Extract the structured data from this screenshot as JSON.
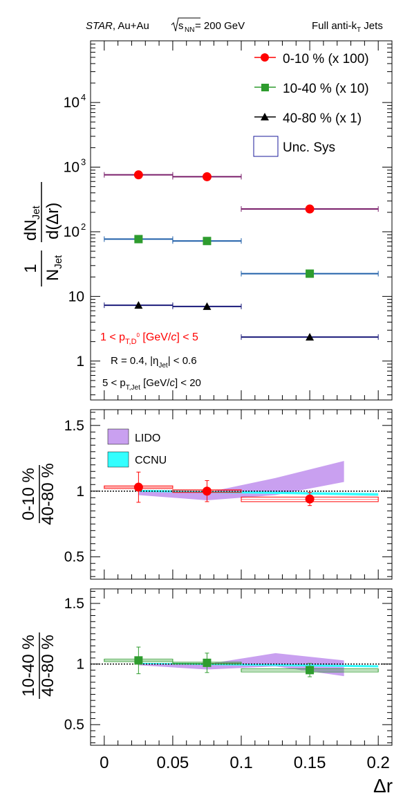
{
  "header": {
    "experiment": "STAR",
    "system": ", Au+Au",
    "energy_sym": "s",
    "energy_sub": "NN",
    "energy_val": " = 200 GeV",
    "jets_pre": "Full anti-k",
    "jets_sub": "T",
    "jets_post": " Jets"
  },
  "colors": {
    "central": "#ff0000",
    "mid": "#2e9c2e",
    "peripheral": "#000000",
    "central_line": "#7a1f6b",
    "mid_line": "#1f5fa8",
    "peripheral_line": "#1a1a7a",
    "lido": "#c9a0f0",
    "ccnu": "#33ffff"
  },
  "legend_top": {
    "central": "0-10 % (x 100)",
    "mid": "10-40 % (x 10)",
    "peripheral": "40-80 % (x 1)",
    "sys": "Unc. Sys"
  },
  "annotations": {
    "d0_a": "1 < p",
    "d0_sub": "T,D",
    "d0_sup": "0",
    "d0_b": " [GeV/",
    "d0_c": "c",
    "d0_d": "] < 5",
    "radius_a": "R = 0.4, |η",
    "radius_sub": "Jet",
    "radius_b": "| < 0.6",
    "ptjet_a": "5 < p",
    "ptjet_sub": "T,Jet",
    "ptjet_b": " [GeV/",
    "ptjet_c": "c",
    "ptjet_d": "] < 20"
  },
  "y_top": {
    "frac_num": "1",
    "frac_den": "N",
    "frac_den_sub": "Jet",
    "d_num_a": "dN",
    "d_num_sub": "Jet",
    "d_den": "d(Δr)"
  },
  "y_mid": {
    "num": "0-10 %",
    "den": "40-80 %"
  },
  "y_bot": {
    "num": "10-40 %",
    "den": "40-80 %"
  },
  "x_label": "Δr",
  "legend_models": {
    "lido": "LIDO",
    "ccnu": "CCNU"
  },
  "chart_data": [
    {
      "type": "scatter",
      "panel": "top",
      "ylog": true,
      "ylim": [
        0.25,
        90000
      ],
      "xlim": [
        -0.01,
        0.21
      ],
      "yticks": [
        {
          "v": 1,
          "label": "1"
        },
        {
          "v": 10,
          "label": "10"
        },
        {
          "v": 100,
          "label": "10",
          "sup": "2"
        },
        {
          "v": 1000,
          "label": "10",
          "sup": "3"
        },
        {
          "v": 10000,
          "label": "10",
          "sup": "4"
        }
      ],
      "bins": [
        [
          0,
          0.05
        ],
        [
          0.05,
          0.1
        ],
        [
          0.1,
          0.2
        ]
      ],
      "series": [
        {
          "name": "0-10 % (x 100)",
          "x": [
            0.025,
            0.075,
            0.15
          ],
          "y": [
            760,
            710,
            225
          ]
        },
        {
          "name": "10-40 % (x 10)",
          "x": [
            0.025,
            0.075,
            0.15
          ],
          "y": [
            77,
            72,
            22.5
          ]
        },
        {
          "name": "40-80 % (x 1)",
          "x": [
            0.025,
            0.075,
            0.15
          ],
          "y": [
            7.3,
            7.0,
            2.35
          ]
        }
      ]
    },
    {
      "type": "scatter",
      "panel": "ratio-central",
      "ylim": [
        0.33,
        1.62
      ],
      "xlim": [
        -0.01,
        0.21
      ],
      "yticks": [
        {
          "v": 0.5,
          "label": "0.5"
        },
        {
          "v": 1,
          "label": "1"
        },
        {
          "v": 1.5,
          "label": "1.5"
        }
      ],
      "points": {
        "x": [
          0.025,
          0.075,
          0.15
        ],
        "y": [
          1.03,
          1.0,
          0.94
        ],
        "err": [
          0.115,
          0.08,
          0.05
        ]
      },
      "sys": [
        [
          0,
          0.05,
          1.02,
          1.04
        ],
        [
          0.05,
          0.1,
          0.99,
          1.01
        ],
        [
          0.1,
          0.2,
          0.92,
          0.955
        ]
      ],
      "lido": {
        "x": [
          0.025,
          0.075,
          0.125,
          0.175
        ],
        "lo": [
          0.97,
          0.93,
          0.97,
          1.07
        ],
        "hi": [
          1.0,
          0.99,
          1.1,
          1.23
        ]
      },
      "ccnu": {
        "x": [
          0.025,
          0.2
        ],
        "lo": [
          0.995,
          0.965
        ],
        "hi": [
          1.01,
          0.985
        ]
      }
    },
    {
      "type": "scatter",
      "panel": "ratio-mid",
      "ylim": [
        0.33,
        1.62
      ],
      "xlim": [
        -0.01,
        0.21
      ],
      "yticks": [
        {
          "v": 0.5,
          "label": "0.5"
        },
        {
          "v": 1,
          "label": "1"
        },
        {
          "v": 1.5,
          "label": "1.5"
        }
      ],
      "points": {
        "x": [
          0.025,
          0.075,
          0.15
        ],
        "y": [
          1.03,
          1.01,
          0.95
        ],
        "err": [
          0.11,
          0.08,
          0.055
        ]
      },
      "sys": [
        [
          0,
          0.05,
          1.02,
          1.04
        ],
        [
          0.05,
          0.1,
          1.0,
          1.015
        ],
        [
          0.1,
          0.2,
          0.935,
          0.96
        ]
      ],
      "lido": {
        "x": [
          0.025,
          0.075,
          0.125,
          0.175
        ],
        "lo": [
          0.99,
          0.955,
          0.98,
          0.9
        ],
        "hi": [
          1.0,
          1.0,
          1.09,
          1.03
        ]
      },
      "ccnu": {
        "x": [
          0.025,
          0.2
        ],
        "lo": [
          1.0,
          0.972
        ],
        "hi": [
          1.01,
          0.99
        ]
      }
    }
  ],
  "x_ticks": [
    {
      "v": 0,
      "label": "0"
    },
    {
      "v": 0.05,
      "label": "0.05"
    },
    {
      "v": 0.1,
      "label": "0.1"
    },
    {
      "v": 0.15,
      "label": "0.15"
    },
    {
      "v": 0.2,
      "label": "0.2"
    }
  ]
}
